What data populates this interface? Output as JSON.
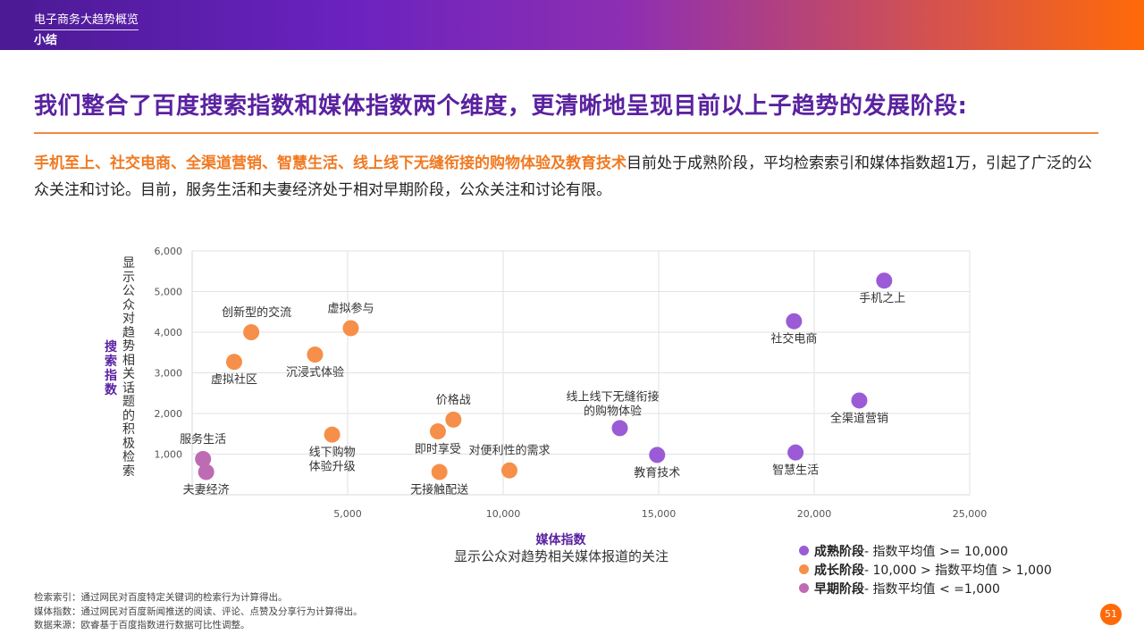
{
  "header": {
    "section_title": "电子商务大趋势概览",
    "subsection": "小结"
  },
  "headline": "我们整合了百度搜索指数和媒体指数两个维度，更清晰地呈现目前以上子趋势的发展阶段:",
  "summary": {
    "highlight": "手机至上、社交电商、全渠道营销、智慧生活、线上线下无缝衔接的购物体验及教育技术",
    "rest": "目前处于成熟阶段，平均检索索引和媒体指数超1万，引起了广泛的公众关注和讨论。目前，服务生活和夫妻经济处于相对早期阶段，公众关注和讨论有限。"
  },
  "colors": {
    "mature": "#9b5bd6",
    "growth": "#f68f49",
    "early": "#bd6cb4",
    "accent_purple": "#5a22a0",
    "accent_orange": "#f07a22"
  },
  "chart_data": {
    "type": "scatter",
    "title": "",
    "xlabel": "媒体指数",
    "xlabel_sub": "显示公众对趋势相关媒体报道的关注",
    "ylabel": "搜索指数",
    "ylabel_sub": "显示公众对趋势相关话题的积极检索",
    "xlim": [
      0,
      25000
    ],
    "ylim": [
      0,
      6000
    ],
    "x_ticks": [
      5000,
      10000,
      15000,
      20000,
      25000
    ],
    "x_tick_labels": [
      "5,000",
      "10,000",
      "15,000",
      "20,000",
      "25,000"
    ],
    "y_ticks": [
      1000,
      2000,
      3000,
      4000,
      5000,
      6000
    ],
    "y_tick_labels": [
      "1,000",
      "2,000",
      "3,000",
      "4,000",
      "5,000",
      "6,000"
    ],
    "grid": true,
    "points": [
      {
        "name": "手机之上",
        "x": 22250,
        "y": 5270,
        "stage": "mature",
        "label_lines": [
          "手机之上"
        ],
        "label_pos": "below-left"
      },
      {
        "name": "社交电商",
        "x": 19350,
        "y": 4270,
        "stage": "mature",
        "label_lines": [
          "社交电商"
        ],
        "label_pos": "below"
      },
      {
        "name": "全渠道营销",
        "x": 21450,
        "y": 2320,
        "stage": "mature",
        "label_lines": [
          "全渠道营销"
        ],
        "label_pos": "below"
      },
      {
        "name": "智慧生活",
        "x": 19400,
        "y": 1040,
        "stage": "mature",
        "label_lines": [
          "智慧生活"
        ],
        "label_pos": "below"
      },
      {
        "name": "线上线下无缝衔接的购物体验",
        "x": 13750,
        "y": 1640,
        "stage": "mature",
        "label_lines": [
          "线上线下无缝衔接",
          "的购物体验"
        ],
        "label_pos": "above-left"
      },
      {
        "name": "教育技术",
        "x": 14950,
        "y": 980,
        "stage": "mature",
        "label_lines": [
          "教育技术"
        ],
        "label_pos": "below"
      },
      {
        "name": "创新型的交流",
        "x": 1900,
        "y": 4000,
        "stage": "growth",
        "label_lines": [
          "创新型的交流"
        ],
        "label_pos": "above-right"
      },
      {
        "name": "虚拟参与",
        "x": 5100,
        "y": 4100,
        "stage": "growth",
        "label_lines": [
          "虚拟参与"
        ],
        "label_pos": "above"
      },
      {
        "name": "虚拟社区",
        "x": 1350,
        "y": 3270,
        "stage": "growth",
        "label_lines": [
          "虚拟社区"
        ],
        "label_pos": "below"
      },
      {
        "name": "沉浸式体验",
        "x": 3950,
        "y": 3450,
        "stage": "growth",
        "label_lines": [
          "沉浸式体验"
        ],
        "label_pos": "below"
      },
      {
        "name": "线下购物体验升级",
        "x": 4500,
        "y": 1480,
        "stage": "growth",
        "label_lines": [
          "线下购物",
          "体验升级"
        ],
        "label_pos": "below"
      },
      {
        "name": "价格战",
        "x": 8400,
        "y": 1850,
        "stage": "growth",
        "label_lines": [
          "价格战"
        ],
        "label_pos": "above"
      },
      {
        "name": "即时享受",
        "x": 7900,
        "y": 1560,
        "stage": "growth",
        "label_lines": [
          "即时享受"
        ],
        "label_pos": "below"
      },
      {
        "name": "无接触配送",
        "x": 7950,
        "y": 560,
        "stage": "growth",
        "label_lines": [
          "无接触配送"
        ],
        "label_pos": "below"
      },
      {
        "name": "对便利性的需求",
        "x": 10200,
        "y": 600,
        "stage": "growth",
        "label_lines": [
          "对便利性的需求"
        ],
        "label_pos": "above"
      },
      {
        "name": "服务生活",
        "x": 350,
        "y": 880,
        "stage": "early",
        "label_lines": [
          "服务生活"
        ],
        "label_pos": "above"
      },
      {
        "name": "夫妻经济",
        "x": 450,
        "y": 560,
        "stage": "early",
        "label_lines": [
          "夫妻经济"
        ],
        "label_pos": "below"
      }
    ],
    "legend": [
      {
        "stage": "mature",
        "label": "成熟阶段",
        "desc": " - 指数平均值 >= 10,000"
      },
      {
        "stage": "growth",
        "label": "成长阶段",
        "desc": " - 10,000 > 指数平均值 > 1,000"
      },
      {
        "stage": "early",
        "label": "早期阶段",
        "desc": " - 指数平均值 < =1,000"
      }
    ],
    "legend_position": "bottom-right"
  },
  "footnotes": [
    "检索索引：通过网民对百度特定关键词的检索行为计算得出。",
    "媒体指数：通过网民对百度新闻推送的阅读、评论、点赞及分享行为计算得出。",
    "数据来源：欧睿基于百度指数进行数据可比性调整。"
  ],
  "page_number": "51"
}
